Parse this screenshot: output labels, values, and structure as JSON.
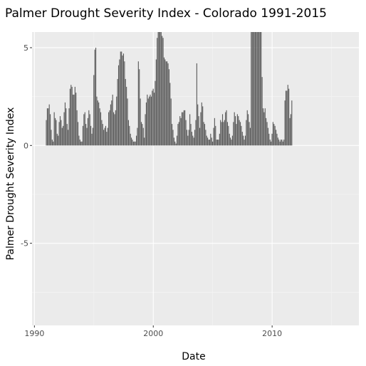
{
  "chart_data": {
    "type": "bar",
    "title": "Palmer Drought Severity Index - Colorado   1991-2015",
    "xlabel": "Date",
    "ylabel": "Palmer Drought Severity Index",
    "x_ticks": [
      "1990",
      "2000",
      "2010"
    ],
    "y_ticks": [
      "5",
      "0",
      "-5"
    ],
    "xlim": [
      1989.8,
      2017.3
    ],
    "ylim": [
      -9.2,
      5.8
    ],
    "grid": true,
    "bar_color": "#595959",
    "panel_color": "#ebebeb",
    "series": [
      {
        "x_start": 1991.0,
        "x_step": 0.0833,
        "values": [
          1.3,
          1.9,
          1.9,
          2.1,
          1.6,
          0.8,
          0.3,
          0.2,
          1.7,
          1.4,
          1.3,
          0.6,
          0.5,
          1.2,
          1.5,
          1.3,
          0.9,
          1.0,
          1.7,
          2.2,
          1.9,
          1.1,
          0.8,
          1.9,
          2.9,
          3.1,
          3.0,
          2.6,
          2.6,
          3.0,
          2.7,
          1.8,
          1.2,
          0.5,
          0.3,
          0.2,
          0.2,
          1.0,
          1.6,
          1.7,
          1.1,
          0.9,
          1.4,
          1.8,
          1.6,
          1.0,
          0.6,
          0.9,
          3.6,
          4.9,
          5.0,
          2.5,
          2.3,
          2.2,
          1.9,
          1.7,
          1.3,
          1.1,
          0.8,
          0.9,
          1.0,
          0.7,
          0.9,
          1.7,
          1.8,
          2.1,
          2.3,
          2.6,
          1.7,
          1.6,
          1.8,
          2.5,
          3.4,
          4.1,
          4.4,
          4.8,
          4.8,
          4.6,
          4.7,
          4.3,
          3.4,
          3.0,
          2.4,
          1.3,
          1.0,
          0.6,
          0.4,
          0.3,
          0.2,
          0.2,
          0.2,
          0.5,
          0.9,
          4.3,
          3.9,
          2.4,
          1.2,
          1.1,
          0.9,
          0.4,
          1.6,
          2.2,
          2.6,
          2.4,
          2.5,
          2.6,
          2.5,
          2.8,
          2.9,
          2.7,
          3.3,
          4.4,
          5.5,
          5.8,
          5.8,
          5.8,
          5.8,
          5.6,
          5.5,
          4.5,
          4.4,
          4.3,
          4.3,
          4.2,
          3.9,
          3.2,
          2.4,
          1.1,
          0.8,
          0.4,
          0.2,
          0.1,
          0.5,
          1.1,
          1.2,
          1.5,
          1.4,
          1.7,
          1.7,
          1.8,
          1.8,
          1.3,
          0.8,
          0.5,
          0.8,
          1.6,
          1.1,
          0.7,
          0.5,
          0.4,
          0.8,
          1.3,
          4.2,
          2.1,
          1.5,
          0.9,
          1.7,
          2.2,
          2.0,
          1.2,
          1.1,
          0.8,
          0.5,
          0.4,
          0.3,
          0.3,
          0.6,
          0.4,
          0.2,
          0.9,
          1.4,
          1.0,
          0.3,
          0.3,
          0.3,
          0.6,
          1.3,
          1.2,
          1.6,
          1.2,
          1.3,
          1.7,
          1.8,
          1.2,
          1.0,
          0.6,
          0.4,
          0.3,
          0.5,
          1.2,
          1.7,
          1.5,
          1.1,
          1.6,
          1.5,
          1.3,
          1.2,
          1.0,
          0.7,
          0.5,
          0.3,
          0.5,
          1.3,
          1.8,
          1.6,
          1.2,
          0.9,
          5.8,
          5.8,
          5.8,
          5.8,
          5.8,
          5.8,
          5.8,
          5.8,
          5.8,
          5.8,
          5.8,
          3.5,
          1.9,
          1.7,
          1.9,
          1.4,
          1.2,
          0.9,
          0.6,
          0.3,
          0.2,
          0.6,
          1.2,
          1.1,
          1.0,
          0.8,
          0.6,
          0.4,
          0.3,
          0.2,
          0.3,
          0.3,
          0.2,
          0.3,
          2.3,
          2.8,
          2.8,
          3.1,
          2.9,
          1.4,
          1.6,
          2.3
        ]
      }
    ]
  }
}
